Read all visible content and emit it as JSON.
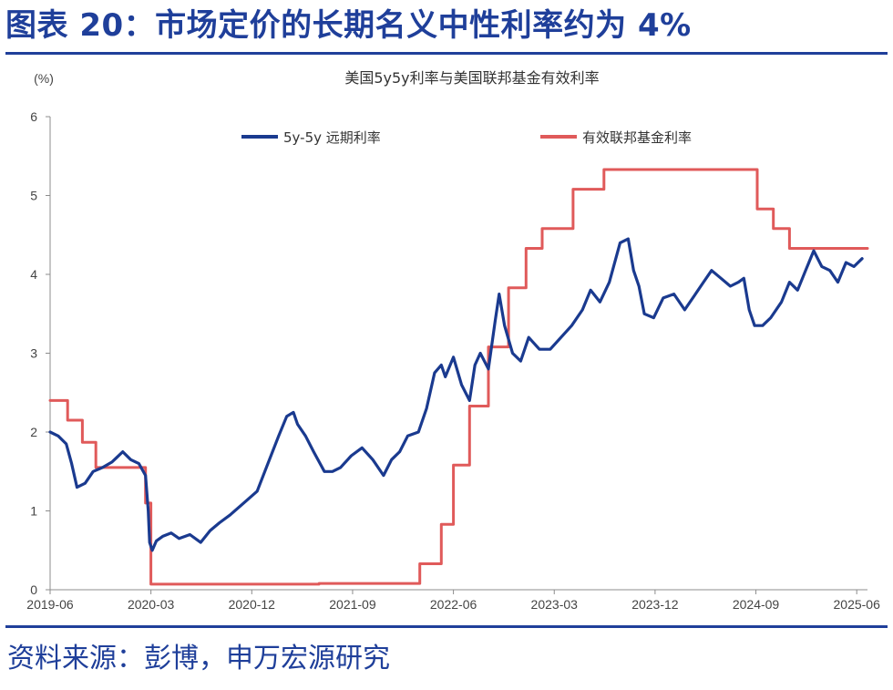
{
  "figure": {
    "heading": "图表 20：市场定价的长期名义中性利率约为 4%",
    "source": "资料来源：彭博，申万宏源研究"
  },
  "chart_data": {
    "type": "line",
    "title": "美国5y5y利率与美国联邦基金有效利率",
    "ylabel": "(%)",
    "ylim": [
      0,
      6
    ],
    "yticks": [
      "0",
      "1",
      "2",
      "3",
      "4",
      "5",
      "6"
    ],
    "xlim": [
      2019.46,
      2025.54
    ],
    "xticks": [
      {
        "x": 2019.46,
        "label": "2019-06"
      },
      {
        "x": 2020.21,
        "label": "2020-03"
      },
      {
        "x": 2020.96,
        "label": "2020-12"
      },
      {
        "x": 2021.71,
        "label": "2021-09"
      },
      {
        "x": 2022.46,
        "label": "2022-06"
      },
      {
        "x": 2023.21,
        "label": "2023-03"
      },
      {
        "x": 2023.96,
        "label": "2023-12"
      },
      {
        "x": 2024.71,
        "label": "2024-09"
      },
      {
        "x": 2025.46,
        "label": "2025-06"
      }
    ],
    "legend_position": "top",
    "colors": {
      "5y5y": "#1a3a8f",
      "ffr": "#e05a5a"
    },
    "series": [
      {
        "name": "5y-5y 远期利率",
        "key": "5y5y",
        "x": [
          2019.46,
          2019.52,
          2019.58,
          2019.62,
          2019.66,
          2019.72,
          2019.78,
          2019.85,
          2019.92,
          2020.0,
          2020.06,
          2020.12,
          2020.17,
          2020.19,
          2020.2,
          2020.22,
          2020.25,
          2020.3,
          2020.36,
          2020.42,
          2020.5,
          2020.58,
          2020.65,
          2020.72,
          2020.8,
          2020.9,
          2021.0,
          2021.08,
          2021.16,
          2021.22,
          2021.27,
          2021.3,
          2021.36,
          2021.42,
          2021.5,
          2021.56,
          2021.62,
          2021.7,
          2021.78,
          2021.86,
          2021.94,
          2022.0,
          2022.06,
          2022.12,
          2022.2,
          2022.26,
          2022.32,
          2022.37,
          2022.4,
          2022.46,
          2022.52,
          2022.58,
          2022.62,
          2022.66,
          2022.72,
          2022.77,
          2022.8,
          2022.84,
          2022.9,
          2022.96,
          2023.02,
          2023.1,
          2023.18,
          2023.26,
          2023.34,
          2023.42,
          2023.48,
          2023.55,
          2023.62,
          2023.7,
          2023.76,
          2023.8,
          2023.84,
          2023.88,
          2023.95,
          2024.02,
          2024.1,
          2024.18,
          2024.26,
          2024.32,
          2024.38,
          2024.45,
          2024.52,
          2024.58,
          2024.62,
          2024.66,
          2024.7,
          2024.76,
          2024.82,
          2024.9,
          2024.96,
          2025.02,
          2025.08,
          2025.14,
          2025.2,
          2025.26,
          2025.32,
          2025.38,
          2025.44,
          2025.5
        ],
        "values": [
          2.0,
          1.95,
          1.85,
          1.6,
          1.3,
          1.35,
          1.5,
          1.55,
          1.62,
          1.75,
          1.65,
          1.6,
          1.45,
          1.0,
          0.6,
          0.5,
          0.62,
          0.68,
          0.72,
          0.65,
          0.7,
          0.6,
          0.75,
          0.85,
          0.95,
          1.1,
          1.25,
          1.6,
          1.95,
          2.2,
          2.25,
          2.1,
          1.95,
          1.75,
          1.5,
          1.5,
          1.55,
          1.7,
          1.8,
          1.65,
          1.45,
          1.65,
          1.75,
          1.95,
          2.0,
          2.3,
          2.75,
          2.85,
          2.7,
          2.95,
          2.6,
          2.4,
          2.85,
          3.0,
          2.8,
          3.4,
          3.75,
          3.35,
          3.0,
          2.9,
          3.2,
          3.05,
          3.05,
          3.2,
          3.35,
          3.55,
          3.8,
          3.65,
          3.9,
          4.4,
          4.45,
          4.05,
          3.85,
          3.5,
          3.45,
          3.7,
          3.75,
          3.55,
          3.75,
          3.9,
          4.05,
          3.95,
          3.85,
          3.9,
          3.95,
          3.55,
          3.35,
          3.35,
          3.45,
          3.65,
          3.9,
          3.8,
          4.05,
          4.3,
          4.1,
          4.05,
          3.9,
          4.15,
          4.1,
          4.2
        ]
      },
      {
        "name": "有效联邦基金利率",
        "key": "ffr",
        "step": true,
        "x": [
          2019.46,
          2019.59,
          2019.7,
          2019.8,
          2020.17,
          2020.21,
          2021.46,
          2022.21,
          2022.37,
          2022.46,
          2022.58,
          2022.72,
          2022.87,
          2023.0,
          2023.12,
          2023.35,
          2023.58,
          2024.72,
          2024.84,
          2024.96,
          2025.53
        ],
        "values": [
          2.4,
          2.15,
          1.87,
          1.55,
          1.1,
          0.07,
          0.08,
          0.33,
          0.83,
          1.58,
          2.33,
          3.08,
          3.83,
          4.33,
          4.58,
          5.08,
          5.33,
          4.83,
          4.58,
          4.33,
          4.33
        ]
      }
    ]
  }
}
